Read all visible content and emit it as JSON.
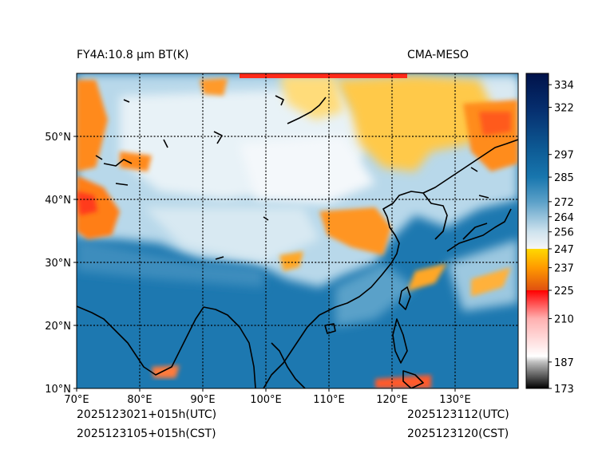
{
  "title_left": "FY4A:10.8 µm BT(K)",
  "title_right": "CMA-MESO",
  "footer": {
    "init_utc": "2025123021+015h(UTC)",
    "init_cst": "2025123105+015h(CST)",
    "valid_utc": "2025123112(UTC)",
    "valid_cst": "2025123120(CST)"
  },
  "map": {
    "lon_range": [
      70,
      140
    ],
    "lat_range": [
      10,
      60
    ],
    "lon_ticks": [
      {
        "value": 70,
        "label": "70°E"
      },
      {
        "value": 80,
        "label": "80°E"
      },
      {
        "value": 90,
        "label": "90°E"
      },
      {
        "value": 100,
        "label": "100°E"
      },
      {
        "value": 110,
        "label": "110°E"
      },
      {
        "value": 120,
        "label": "120°E"
      },
      {
        "value": 130,
        "label": "130°E"
      }
    ],
    "lat_ticks": [
      {
        "value": 10,
        "label": "10°N"
      },
      {
        "value": 20,
        "label": "20°N"
      },
      {
        "value": 30,
        "label": "30°N"
      },
      {
        "value": 40,
        "label": "40°N"
      },
      {
        "value": 50,
        "label": "50°N"
      }
    ]
  },
  "colorbar": {
    "range": [
      173,
      340
    ],
    "ticks": [
      173,
      187,
      210,
      225,
      237,
      247,
      256,
      264,
      272,
      285,
      297,
      322,
      334
    ],
    "stops": [
      {
        "value": 173,
        "color": "#000000"
      },
      {
        "value": 187,
        "color": "#bfbfbf"
      },
      {
        "value": 190,
        "color": "#ffffff"
      },
      {
        "value": 210,
        "color": "#ffb0b0"
      },
      {
        "value": 224.9,
        "color": "#ff0000"
      },
      {
        "value": 225,
        "color": "#e05010"
      },
      {
        "value": 237,
        "color": "#ff9a00"
      },
      {
        "value": 246.9,
        "color": "#ffd800"
      },
      {
        "value": 247,
        "color": "#f6f6f6"
      },
      {
        "value": 256,
        "color": "#cfe3ee"
      },
      {
        "value": 272,
        "color": "#5ba0c8"
      },
      {
        "value": 285,
        "color": "#1876ae"
      },
      {
        "value": 300,
        "color": "#0d5a94"
      },
      {
        "value": 320,
        "color": "#063070"
      },
      {
        "value": 340,
        "color": "#00124a"
      }
    ]
  }
}
